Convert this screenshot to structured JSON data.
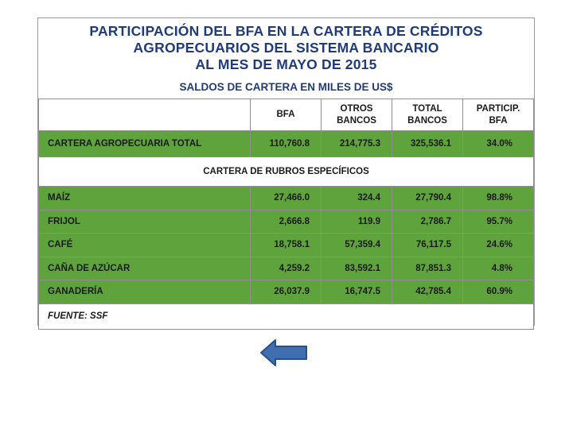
{
  "title": {
    "line1": "PARTICIPACIÓN DEL BFA  EN LA CARTERA DE CRÉDITOS",
    "line2": "AGROPECUARIOS DEL SISTEMA BANCARIO",
    "line3": "AL MES DE MAYO DE 2015"
  },
  "subtitle": "SALDOS DE CARTERA EN MILES DE US$",
  "columns": {
    "bfa": "BFA",
    "otros": [
      "OTROS",
      "BANCOS"
    ],
    "total": [
      "TOTAL",
      "BANCOS"
    ],
    "particip": [
      "PARTICIP.",
      "BFA"
    ]
  },
  "total_row": {
    "label": "CARTERA AGROPECUARIA TOTAL",
    "bfa": "110,760.8",
    "otros": "214,775.3",
    "total": "325,536.1",
    "particip": "34.0%"
  },
  "section_title": "CARTERA DE RUBROS ESPECÍFICOS",
  "rows": [
    {
      "label": "MAÍZ",
      "bfa": "27,466.0",
      "otros": "324.4",
      "total": "27,790.4",
      "particip": "98.8%"
    },
    {
      "label": "FRIJOL",
      "bfa": "2,666.8",
      "otros": "119.9",
      "total": "2,786.7",
      "particip": "95.7%"
    },
    {
      "label": "CAFÉ",
      "bfa": "18,758.1",
      "otros": "57,359.4",
      "total": "76,117.5",
      "particip": "24.6%"
    },
    {
      "label": "CAÑA DE AZÚCAR",
      "bfa": "4,259.2",
      "otros": "83,592.1",
      "total": "87,851.3",
      "particip": "4.8%"
    },
    {
      "label": "GANADERÍA",
      "bfa": "26,037.9",
      "otros": "16,747.5",
      "total": "42,785.4",
      "particip": "60.9%"
    }
  ],
  "source": "FUENTE: SSF",
  "colors": {
    "accent_green": "#5ea33c",
    "title_blue": "#1f3b7a",
    "arrow_blue": "#3f6fb0"
  },
  "nav": {
    "back_icon": "left-arrow-icon"
  }
}
